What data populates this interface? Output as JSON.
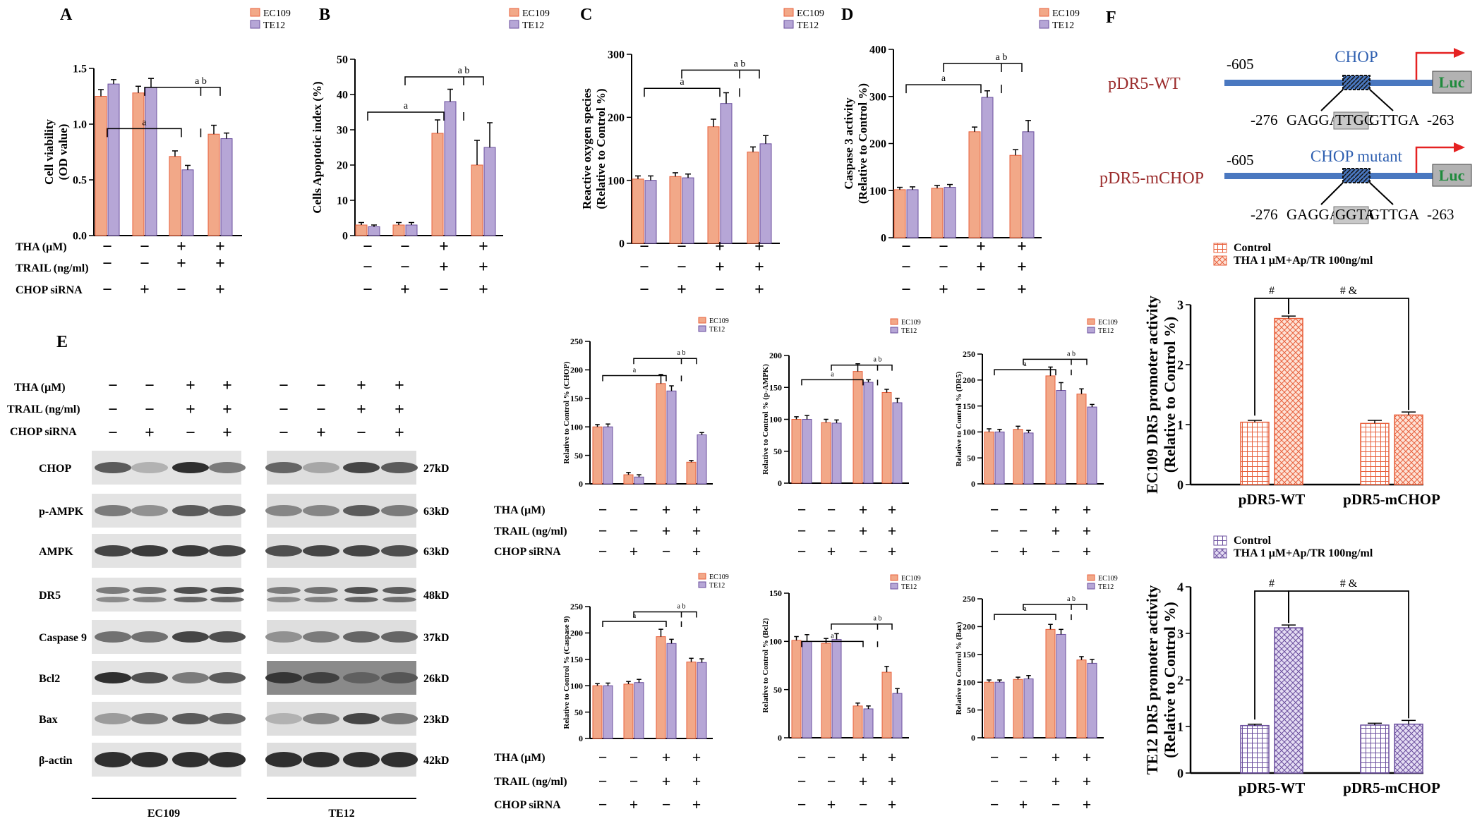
{
  "colors": {
    "ec109": "#f2a888",
    "te12": "#b6a6d6",
    "ec109_edge": "#e8603c",
    "te12_edge": "#6b4f9e",
    "dna": "#4a78c0",
    "arrow": "#e52222",
    "luc_fill": "#b2b2b2",
    "luc_text": "#1f8a3c",
    "construct": "#9b2c2c",
    "blue_text": "#2e5fb0"
  },
  "legend": {
    "ec109": "EC109",
    "te12": "TE12"
  },
  "row_labels": {
    "tha": "THA (μM)",
    "trail": "TRAIL (ng/ml)",
    "chop": "CHOP siRNA"
  },
  "signs": {
    "tha": [
      "−",
      "−",
      "+",
      "+"
    ],
    "trail": [
      "−",
      "−",
      "+",
      "+"
    ],
    "chop": [
      "−",
      "+",
      "−",
      "+"
    ]
  },
  "sig": {
    "ab": "a b",
    "a": "a"
  },
  "panel_letters": {
    "A": "A",
    "B": "B",
    "C": "C",
    "D": "D",
    "E": "E",
    "F": "F"
  },
  "chart_data": [
    {
      "id": "A",
      "type": "bar",
      "ylabel": "Cell viability\n(OD value)",
      "ylim": [
        0,
        1.5
      ],
      "yticks": [
        0,
        0.5,
        1.0,
        1.5
      ],
      "tick_labels": [
        "0.0",
        "0.5",
        "1.0",
        "1.5"
      ],
      "series": [
        {
          "name": "EC109",
          "values": [
            1.25,
            1.28,
            0.71,
            0.91
          ],
          "errors": [
            0.06,
            0.06,
            0.05,
            0.08
          ]
        },
        {
          "name": "TE12",
          "values": [
            1.36,
            1.33,
            0.59,
            0.87
          ],
          "errors": [
            0.04,
            0.08,
            0.04,
            0.05
          ]
        }
      ]
    },
    {
      "id": "B",
      "type": "bar",
      "ylabel": "Cells Apoptotic index (%)",
      "ylim": [
        0,
        50
      ],
      "yticks": [
        0,
        10,
        20,
        30,
        40,
        50
      ],
      "tick_labels": [
        "0",
        "10",
        "20",
        "30",
        "40",
        "50"
      ],
      "series": [
        {
          "name": "EC109",
          "values": [
            3,
            3,
            29,
            20
          ],
          "errors": [
            0.7,
            0.7,
            3.8,
            7
          ]
        },
        {
          "name": "TE12",
          "values": [
            2.5,
            3,
            38,
            25
          ],
          "errors": [
            0.5,
            0.7,
            3.5,
            7
          ]
        }
      ]
    },
    {
      "id": "C",
      "type": "bar",
      "ylabel": "Reactive oxygen species\n(Relative to Control %)",
      "ylim": [
        0,
        300
      ],
      "yticks": [
        0,
        100,
        200,
        300
      ],
      "tick_labels": [
        "0",
        "100",
        "200",
        "300"
      ],
      "series": [
        {
          "name": "EC109",
          "values": [
            102,
            106,
            185,
            145
          ],
          "errors": [
            5,
            6,
            12,
            8
          ]
        },
        {
          "name": "TE12",
          "values": [
            100,
            104,
            222,
            158
          ],
          "errors": [
            7,
            6,
            17,
            13
          ]
        }
      ]
    },
    {
      "id": "D",
      "type": "bar",
      "ylabel": "Caspase 3 activity\n(Relative to Control %)",
      "ylim": [
        0,
        400
      ],
      "yticks": [
        0,
        100,
        200,
        300,
        400
      ],
      "tick_labels": [
        "0",
        "100",
        "200",
        "300",
        "400"
      ],
      "series": [
        {
          "name": "EC109",
          "values": [
            102,
            105,
            225,
            175
          ],
          "errors": [
            5,
            6,
            10,
            12
          ]
        },
        {
          "name": "TE12",
          "values": [
            102,
            107,
            298,
            225
          ],
          "errors": [
            6,
            6,
            14,
            24
          ]
        }
      ]
    },
    {
      "id": "E1",
      "type": "bar",
      "ylabel": "Relative to Control % (CHOP)",
      "ylim": [
        0,
        250
      ],
      "yticks": [
        0,
        50,
        100,
        150,
        200,
        250
      ],
      "tick_labels": [
        "0",
        "50",
        "100",
        "150",
        "200",
        "250"
      ],
      "series": [
        {
          "name": "EC109",
          "values": [
            100,
            16,
            176,
            38
          ],
          "errors": [
            4,
            4,
            16,
            3
          ]
        },
        {
          "name": "TE12",
          "values": [
            100,
            12,
            163,
            86
          ],
          "errors": [
            5,
            4,
            9,
            4
          ]
        }
      ]
    },
    {
      "id": "E2",
      "type": "bar",
      "ylabel": "Relative to Control % (p-AMPK)",
      "ylim": [
        0,
        200
      ],
      "yticks": [
        0,
        50,
        100,
        150,
        200
      ],
      "tick_labels": [
        "0",
        "50",
        "100",
        "150",
        "200"
      ],
      "series": [
        {
          "name": "EC109",
          "values": [
            100,
            95,
            175,
            142
          ],
          "errors": [
            4,
            5,
            12,
            5
          ]
        },
        {
          "name": "TE12",
          "values": [
            100,
            94,
            158,
            126
          ],
          "errors": [
            6,
            5,
            4,
            7
          ]
        }
      ]
    },
    {
      "id": "E3",
      "type": "bar",
      "ylabel": "Relative to Control % (DR5)",
      "ylim": [
        0,
        250
      ],
      "yticks": [
        0,
        50,
        100,
        150,
        200,
        250
      ],
      "tick_labels": [
        "0",
        "50",
        "100",
        "150",
        "200",
        "250"
      ],
      "series": [
        {
          "name": "EC109",
          "values": [
            100,
            105,
            208,
            173
          ],
          "errors": [
            6,
            6,
            17,
            10
          ]
        },
        {
          "name": "TE12",
          "values": [
            100,
            98,
            180,
            148
          ],
          "errors": [
            5,
            5,
            15,
            5
          ]
        }
      ]
    },
    {
      "id": "E4",
      "type": "bar",
      "ylabel": "Relative to Control % (Caspase 9)",
      "ylim": [
        0,
        250
      ],
      "yticks": [
        0,
        50,
        100,
        150,
        200,
        250
      ],
      "tick_labels": [
        "0",
        "50",
        "100",
        "150",
        "200",
        "250"
      ],
      "series": [
        {
          "name": "EC109",
          "values": [
            100,
            103,
            193,
            145
          ],
          "errors": [
            4,
            5,
            14,
            7
          ]
        },
        {
          "name": "TE12",
          "values": [
            100,
            106,
            180,
            144
          ],
          "errors": [
            5,
            6,
            8,
            7
          ]
        }
      ]
    },
    {
      "id": "E5",
      "type": "bar",
      "ylabel": "Relative to Control % (Bcl2)",
      "ylim": [
        0,
        150
      ],
      "yticks": [
        0,
        50,
        100,
        150
      ],
      "tick_labels": [
        "0",
        "50",
        "100",
        "150"
      ],
      "series": [
        {
          "name": "EC109",
          "values": [
            101,
            98,
            33,
            68
          ],
          "errors": [
            4,
            5,
            3,
            6
          ]
        },
        {
          "name": "TE12",
          "values": [
            100,
            102,
            30,
            46
          ],
          "errors": [
            7,
            6,
            3,
            5
          ]
        }
      ]
    },
    {
      "id": "E6",
      "type": "bar",
      "ylabel": "Relative to Control % (Bax)",
      "ylim": [
        0,
        250
      ],
      "yticks": [
        0,
        50,
        100,
        150,
        200,
        250
      ],
      "tick_labels": [
        "0",
        "50",
        "100",
        "150",
        "200",
        "250"
      ],
      "series": [
        {
          "name": "EC109",
          "values": [
            100,
            105,
            195,
            140
          ],
          "errors": [
            4,
            4,
            9,
            6
          ]
        },
        {
          "name": "TE12",
          "values": [
            100,
            106,
            186,
            134
          ],
          "errors": [
            4,
            6,
            9,
            7
          ]
        }
      ]
    },
    {
      "id": "F1",
      "type": "bar",
      "ylabel": "EC109 DR5 promoter activity\n(Relative to Control %)",
      "ylim": [
        0,
        3
      ],
      "yticks": [
        0,
        1,
        2,
        3
      ],
      "tick_labels": [
        "0",
        "1",
        "2",
        "3"
      ],
      "categories": [
        "pDR5-WT",
        "pDR5-mCHOP"
      ],
      "legend": [
        "Control",
        "THA 1 μM+Ap/TR 100ng/ml"
      ],
      "series": [
        {
          "name": "Control",
          "values": [
            1.04,
            1.02
          ],
          "errors": [
            0.03,
            0.05
          ]
        },
        {
          "name": "THA 1 μM+Ap/TR 100ng/ml",
          "values": [
            2.77,
            1.16
          ],
          "errors": [
            0.04,
            0.05
          ]
        }
      ],
      "annotations": [
        "#",
        "# &"
      ]
    },
    {
      "id": "F2",
      "type": "bar",
      "ylabel": "TE12 DR5 promoter activity\n(Relative to Control %)",
      "ylim": [
        0,
        4
      ],
      "yticks": [
        0,
        1,
        2,
        3,
        4
      ],
      "tick_labels": [
        "0",
        "1",
        "2",
        "3",
        "4"
      ],
      "categories": [
        "pDR5-WT",
        "pDR5-mCHOP"
      ],
      "legend": [
        "Control",
        "THA 1 μM+Ap/TR 100ng/ml"
      ],
      "series": [
        {
          "name": "Control",
          "values": [
            1.02,
            1.03
          ],
          "errors": [
            0.03,
            0.04
          ]
        },
        {
          "name": "THA 1 μM+Ap/TR 100ng/ml",
          "values": [
            3.12,
            1.05
          ],
          "errors": [
            0.06,
            0.08
          ]
        }
      ],
      "annotations": [
        "#",
        "# &"
      ]
    }
  ],
  "blot": {
    "bands": [
      "CHOP",
      "p-AMPK",
      "AMPK",
      "DR5",
      "Caspase 9",
      "Bcl2",
      "Bax",
      "β-actin"
    ],
    "sizes": [
      "27kD",
      "63kD",
      "63kD",
      "48kD",
      "37kD",
      "26kD",
      "23kD",
      "42kD"
    ],
    "groups": [
      "EC109",
      "TE12"
    ]
  },
  "constructs": {
    "wt": {
      "name": "pDR5-WT",
      "pos": "-605",
      "label": "CHOP",
      "start": "-276",
      "seq_pre": "GAGGA",
      "seq_box": "TTGC",
      "seq_post": "GTTGA",
      "end": "-263"
    },
    "mut": {
      "name": "pDR5-mCHOP",
      "pos": "-605",
      "label": "CHOP mutant",
      "start": "-276",
      "seq_pre": "GAGGA",
      "seq_box": "GGTA",
      "seq_post": "GTTGA",
      "end": "-263"
    },
    "luc": "Luc"
  }
}
